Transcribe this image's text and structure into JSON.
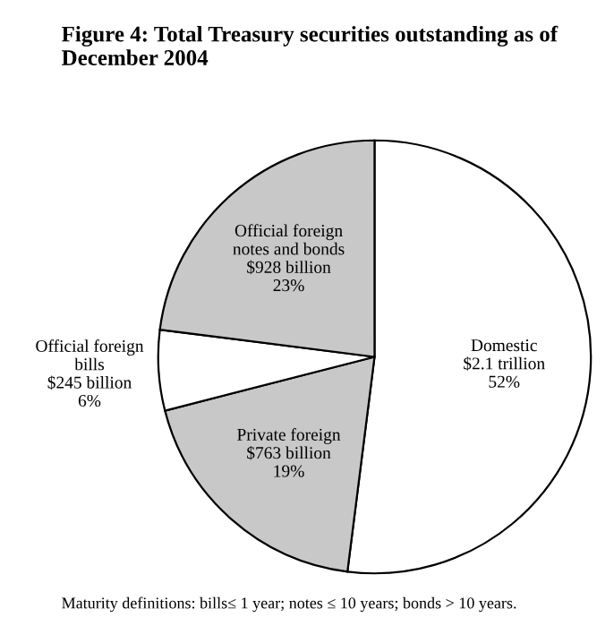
{
  "chart_data": {
    "type": "pie",
    "title": "Figure 4: Total Treasury securities outstanding as of December 2004",
    "categories": [
      "Domestic",
      "Private foreign",
      "Official foreign bills",
      "Official foreign notes and bonds"
    ],
    "values": [
      52,
      19,
      6,
      23
    ],
    "value_labels": [
      "$2.1 trillion\n52%",
      "$763 billion\n19%",
      "$245 billion\n6%",
      "$928 billion\n23%"
    ],
    "colors": [
      "#ffffff",
      "#c8c8c8",
      "#ffffff",
      "#c8c8c8"
    ],
    "annotations": [
      "Maturity definitions: bills≤ 1 year; notes ≤ 10 years; bonds > 10 years."
    ]
  }
}
